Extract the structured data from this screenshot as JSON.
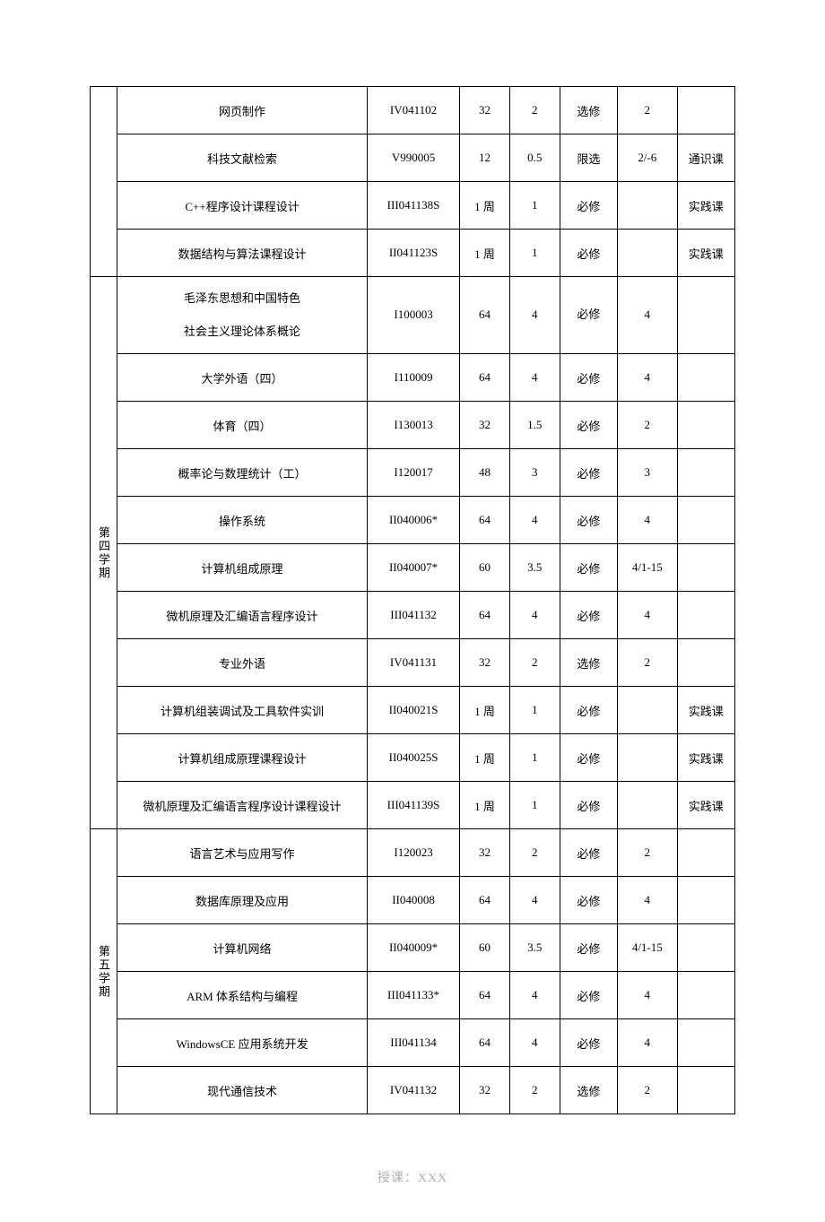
{
  "footer": "授课：XXX",
  "groups": [
    {
      "semester": "",
      "rows": [
        {
          "name": "网页制作",
          "code": "IV041102",
          "hours": "32",
          "credit": "2",
          "req": "选修",
          "week": "2",
          "note": ""
        },
        {
          "name": "科技文献检索",
          "code": "V990005",
          "hours": "12",
          "credit": "0.5",
          "req": "限选",
          "week": "2/-6",
          "note": "通识课"
        },
        {
          "name": "C++程序设计课程设计",
          "code": "III041138S",
          "hours": "1 周",
          "credit": "1",
          "req": "必修",
          "week": "",
          "note": "实践课"
        },
        {
          "name": "数据结构与算法课程设计",
          "code": "II041123S",
          "hours": "1 周",
          "credit": "1",
          "req": "必修",
          "week": "",
          "note": "实践课"
        }
      ]
    },
    {
      "semester": "第四学期",
      "rows": [
        {
          "name": "毛泽东思想和中国特色\n社会主义理论体系概论",
          "code": "I100003",
          "hours": "64",
          "credit": "4",
          "req": "必修",
          "week": "4",
          "note": "",
          "twoLine": true
        },
        {
          "name": "大学外语（四）",
          "code": "I110009",
          "hours": "64",
          "credit": "4",
          "req": "必修",
          "week": "4",
          "note": ""
        },
        {
          "name": "体育（四）",
          "code": "I130013",
          "hours": "32",
          "credit": "1.5",
          "req": "必修",
          "week": "2",
          "note": ""
        },
        {
          "name": "概率论与数理统计（工）",
          "code": "I120017",
          "hours": "48",
          "credit": "3",
          "req": "必修",
          "week": "3",
          "note": ""
        },
        {
          "name": "操作系统",
          "code": "II040006*",
          "hours": "64",
          "credit": "4",
          "req": "必修",
          "week": "4",
          "note": ""
        },
        {
          "name": "计算机组成原理",
          "code": "II040007*",
          "hours": "60",
          "credit": "3.5",
          "req": "必修",
          "week": "4/1-15",
          "note": ""
        },
        {
          "name": "微机原理及汇编语言程序设计",
          "code": "III041132",
          "hours": "64",
          "credit": "4",
          "req": "必修",
          "week": "4",
          "note": ""
        },
        {
          "name": "专业外语",
          "code": "IV041131",
          "hours": "32",
          "credit": "2",
          "req": "选修",
          "week": "2",
          "note": ""
        },
        {
          "name": "计算机组装调试及工具软件实训",
          "code": "II040021S",
          "hours": "1 周",
          "credit": "1",
          "req": "必修",
          "week": "",
          "note": "实践课"
        },
        {
          "name": "计算机组成原理课程设计",
          "code": "II040025S",
          "hours": "1 周",
          "credit": "1",
          "req": "必修",
          "week": "",
          "note": "实践课"
        },
        {
          "name": "微机原理及汇编语言程序设计课程设计",
          "code": "III041139S",
          "hours": "1 周",
          "credit": "1",
          "req": "必修",
          "week": "",
          "note": "实践课"
        }
      ]
    },
    {
      "semester": "第五学期",
      "rows": [
        {
          "name": "语言艺术与应用写作",
          "code": "I120023",
          "hours": "32",
          "credit": "2",
          "req": "必修",
          "week": "2",
          "note": ""
        },
        {
          "name": "数据库原理及应用",
          "code": "II040008",
          "hours": "64",
          "credit": "4",
          "req": "必修",
          "week": "4",
          "note": ""
        },
        {
          "name": "计算机网络",
          "code": "II040009*",
          "hours": "60",
          "credit": "3.5",
          "req": "必修",
          "week": "4/1-15",
          "note": ""
        },
        {
          "name": "ARM 体系结构与编程",
          "code": "III041133*",
          "hours": "64",
          "credit": "4",
          "req": "必修",
          "week": "4",
          "note": ""
        },
        {
          "name": "WindowsCE 应用系统开发",
          "code": "III041134",
          "hours": "64",
          "credit": "4",
          "req": "必修",
          "week": "4",
          "note": ""
        },
        {
          "name": "现代通信技术",
          "code": "IV041132",
          "hours": "32",
          "credit": "2",
          "req": "选修",
          "week": "2",
          "note": ""
        }
      ]
    }
  ]
}
